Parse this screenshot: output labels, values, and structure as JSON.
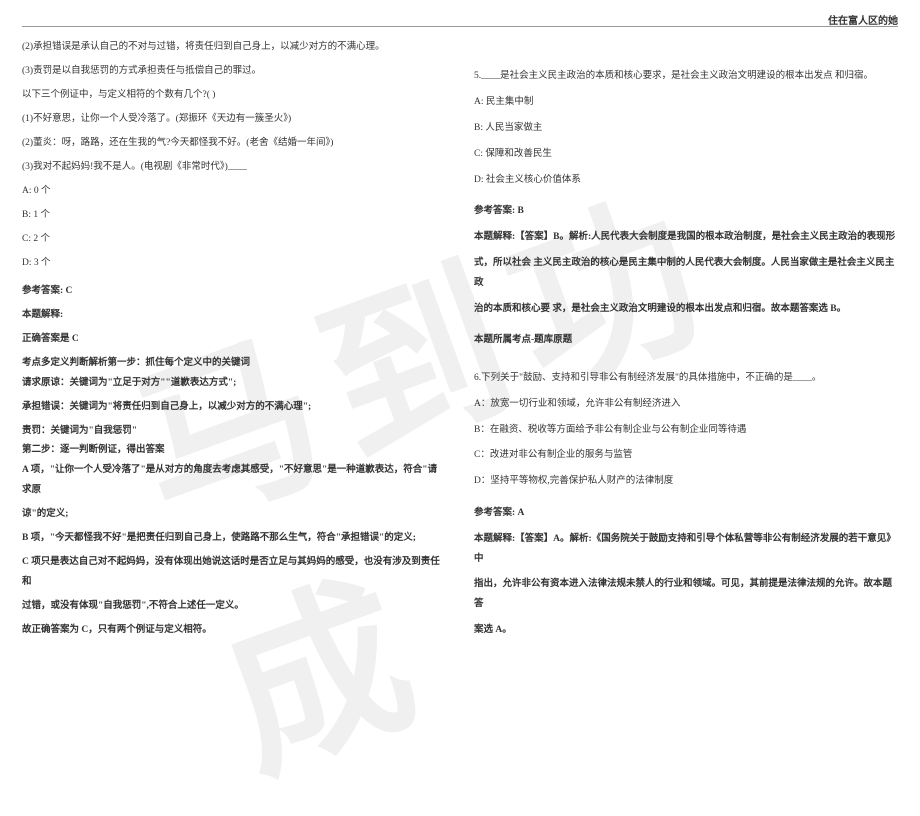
{
  "header": {
    "title": "住在富人区的她"
  },
  "watermark": "马到功成",
  "left": {
    "l1": "(2)承担错误是承认自己的不对与过错，将责任归到自己身上，以减少对方的不满心理。",
    "l2": "(3)责罚是以自我惩罚的方式承担责任与抵偿自己的罪过。",
    "l3": "以下三个例证中，与定义相符的个数有几个?( )",
    "l4": "(1)不好意思，让你一个人受冷落了。(郑振环《天边有一簇圣火》)",
    "l5": "(2)董炎：呀，路路，还在生我的气?今天都怪我不好。(老舍《结婚一年间》)",
    "l6": "(3)我对不起妈妈!我不是人。(电视剧《非常时代》)____",
    "optA": "A: 0 个",
    "optB": "B: 1 个",
    "optC": "C: 2 个",
    "optD": "D: 3 个",
    "ans": "参考答案: C",
    "exp1": "本题解释:",
    "exp2": "正确答案是 C",
    "exp3": "考点多定义判断解析第一步：抓住每个定义中的关键词",
    "exp4": "请求原谅：关键词为\"立足于对方\"\"道歉表达方式\";",
    "exp5": "承担错误：关键词为\"将责任归到自己身上，以减少对方的不满心理\";",
    "exp6": "责罚：关键词为\"自我惩罚\"",
    "exp7": "第二步：逐一判断例证，得出答案",
    "exp8": "A 项，\"让你一个人受冷落了\"是从对方的角度去考虑其感受，\"不好意思\"是一种道歉表达，符合\"请求原",
    "exp9": "谅\"的定义;",
    "exp10": "B 项，\"今天都怪我不好\"是把责任归到自己身上，使路路不那么生气，符合\"承担错误\"的定义;",
    "exp11": "C 项只是表达自己对不起妈妈，没有体现出她说这话时是否立足与其妈妈的感受，也没有涉及到责任和",
    "exp12": "过错，或没有体现\"自我惩罚\",不符合上述任一定义。",
    "exp13": "故正确答案为 C，只有两个例证与定义相符。"
  },
  "right": {
    "q5": "5.____是社会主义民主政治的本质和核心要求，是社会主义政治文明建设的根本出发点 和归宿。",
    "q5A": "A: 民主集中制",
    "q5B": "B: 人民当家做主",
    "q5C": "C: 保障和改善民生",
    "q5D": "D: 社会主义核心价值体系",
    "q5ans": "参考答案: B",
    "q5exp1": "本题解释:【答案】B。解析:人民代表大会制度是我国的根本政治制度，是社会主义民主政治的表现形",
    "q5exp2": "式，所以社会 主义民主政治的核心是民主集中制的人民代表大会制度。人民当家做主是社会主义民主政",
    "q5exp3": "治的本质和核心要 求，是社会主义政治文明建设的根本出发点和归宿。故本题答案选 B。",
    "q5cat": "本题所属考点-题库原题",
    "q6": "6.下列关于\"鼓励、支持和引导非公有制经济发展\"的具体措施中，不正确的是____。",
    "q6A": "A：放宽一切行业和领域，允许非公有制经济进入",
    "q6B": "B：在融资、税收等方面给予非公有制企业与公有制企业同等待遇",
    "q6C": "C：改进对非公有制企业的服务与监管",
    "q6D": "D：坚持平等物权,完善保护私人财产的法律制度",
    "q6ans": "参考答案: A",
    "q6exp1": "本题解释:【答案】A。解析:《国务院关于鼓励支持和引导个体私营等非公有制经济发展的若干意见》中",
    "q6exp2": "指出，允许非公有资本进入法律法规未禁人的行业和领域。可见，其前提是法律法规的允许。故本题答",
    "q6exp3": "案选 A。"
  }
}
